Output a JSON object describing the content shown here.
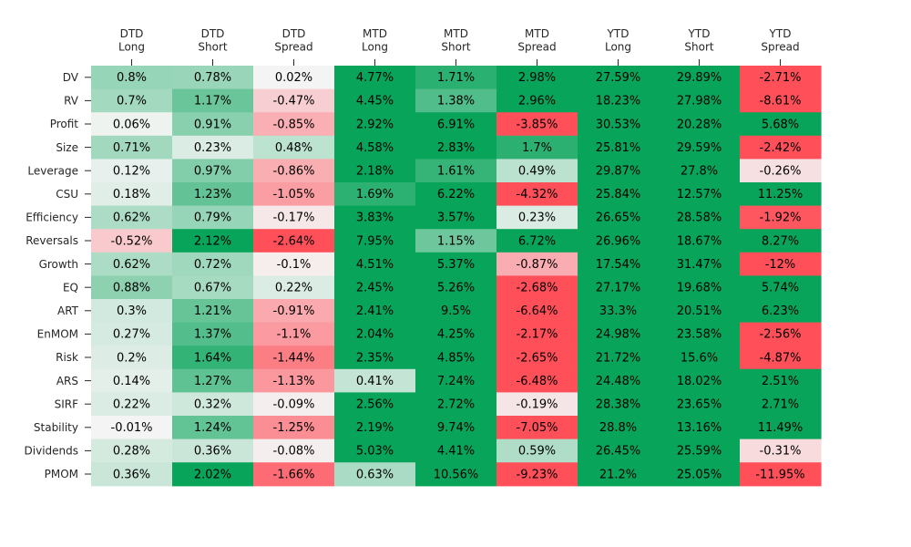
{
  "chart_data": {
    "type": "heatmap",
    "title": "",
    "xlabel": "",
    "ylabel": "",
    "columns": [
      [
        "DTD",
        "Long"
      ],
      [
        "DTD",
        "Short"
      ],
      [
        "DTD",
        "Spread"
      ],
      [
        "MTD",
        "Long"
      ],
      [
        "MTD",
        "Short"
      ],
      [
        "MTD",
        "Spread"
      ],
      [
        "YTD",
        "Long"
      ],
      [
        "YTD",
        "Short"
      ],
      [
        "YTD",
        "Spread"
      ]
    ],
    "rows": [
      "DV",
      "RV",
      "Profit",
      "Size",
      "Leverage",
      "CSU",
      "Efficiency",
      "Reversals",
      "Growth",
      "EQ",
      "ART",
      "EnMOM",
      "Risk",
      "ARS",
      "SIRF",
      "Stability",
      "Dividends",
      "PMOM"
    ],
    "values": [
      [
        0.8,
        0.78,
        0.02,
        4.77,
        1.71,
        2.98,
        27.59,
        29.89,
        -2.71
      ],
      [
        0.7,
        1.17,
        -0.47,
        4.45,
        1.38,
        2.96,
        18.23,
        27.98,
        -8.61
      ],
      [
        0.06,
        0.91,
        -0.85,
        2.92,
        6.91,
        -3.85,
        30.53,
        20.28,
        5.68
      ],
      [
        0.71,
        0.23,
        0.48,
        4.58,
        2.83,
        1.7,
        25.81,
        29.59,
        -2.42
      ],
      [
        0.12,
        0.97,
        -0.86,
        2.18,
        1.61,
        0.49,
        29.87,
        27.8,
        -0.26
      ],
      [
        0.18,
        1.23,
        -1.05,
        1.69,
        6.22,
        -4.32,
        25.84,
        12.57,
        11.25
      ],
      [
        0.62,
        0.79,
        -0.17,
        3.83,
        3.57,
        0.23,
        26.65,
        28.58,
        -1.92
      ],
      [
        -0.52,
        2.12,
        -2.64,
        7.95,
        1.15,
        6.72,
        26.96,
        18.67,
        8.27
      ],
      [
        0.62,
        0.72,
        -0.1,
        4.51,
        5.37,
        -0.87,
        17.54,
        31.47,
        -12.0
      ],
      [
        0.88,
        0.67,
        0.22,
        2.45,
        5.26,
        -2.68,
        27.17,
        19.68,
        5.74
      ],
      [
        0.3,
        1.21,
        -0.91,
        2.41,
        9.5,
        -6.64,
        33.3,
        20.51,
        6.23
      ],
      [
        0.27,
        1.37,
        -1.1,
        2.04,
        4.25,
        -2.17,
        24.98,
        23.58,
        -2.56
      ],
      [
        0.2,
        1.64,
        -1.44,
        2.35,
        4.85,
        -2.65,
        21.72,
        15.6,
        -4.87
      ],
      [
        0.14,
        1.27,
        -1.13,
        0.41,
        7.24,
        -6.48,
        24.48,
        18.02,
        2.51
      ],
      [
        0.22,
        0.32,
        -0.09,
        2.56,
        2.72,
        -0.19,
        28.38,
        23.65,
        2.71
      ],
      [
        -0.01,
        1.24,
        -1.25,
        2.19,
        9.74,
        -7.05,
        28.8,
        13.16,
        11.49
      ],
      [
        0.28,
        0.36,
        -0.08,
        5.03,
        4.41,
        0.59,
        26.45,
        25.59,
        -0.31
      ],
      [
        0.36,
        2.02,
        -1.66,
        0.63,
        10.56,
        -9.23,
        21.2,
        25.05,
        -11.95
      ]
    ],
    "value_suffix": "%",
    "color_scale": {
      "negative": "#ff505a",
      "neutral": "#f5f5f5",
      "positive": "#08a45a",
      "range": [
        -2,
        2
      ]
    },
    "grid": false,
    "legend": "none"
  }
}
